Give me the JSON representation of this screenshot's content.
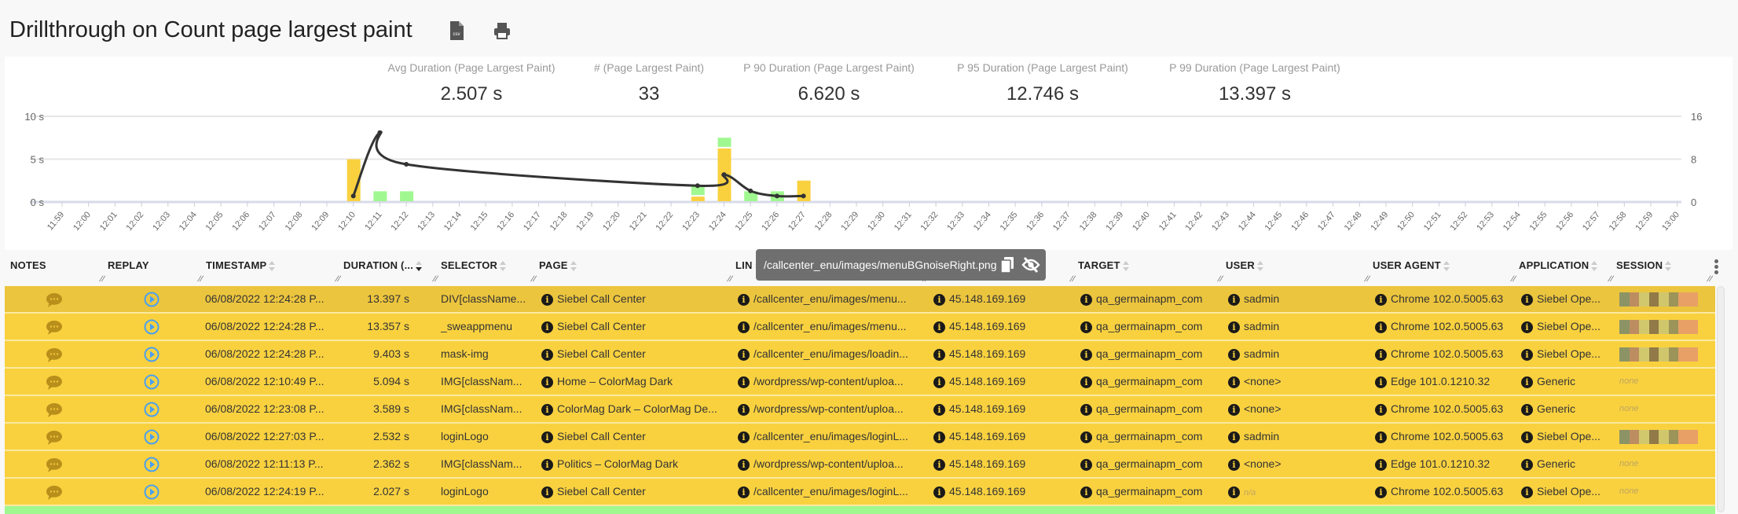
{
  "title": "Drillthrough on Count page largest paint",
  "toolbar": {
    "csv_icon": "csv-file-icon",
    "print_icon": "printer-icon"
  },
  "kpis": [
    {
      "label": "Avg Duration (Page Largest Paint)",
      "value": "2.507 s"
    },
    {
      "label": "# (Page Largest Paint)",
      "value": "33"
    },
    {
      "label": "P 90 Duration (Page Largest Paint)",
      "value": "6.620 s"
    },
    {
      "label": "P 95 Duration (Page Largest Paint)",
      "value": "12.746 s"
    },
    {
      "label": "P 99 Duration (Page Largest Paint)",
      "value": "13.397 s"
    }
  ],
  "chart_data": {
    "type": "bar+line",
    "x": [
      "11:59",
      "12:00",
      "12:01",
      "12:02",
      "12:03",
      "12:04",
      "12:05",
      "12:06",
      "12:07",
      "12:08",
      "12:09",
      "12:10",
      "12:11",
      "12:12",
      "12:13",
      "12:14",
      "12:15",
      "12:16",
      "12:17",
      "12:18",
      "12:19",
      "12:20",
      "12:21",
      "12:22",
      "12:23",
      "12:24",
      "12:25",
      "12:26",
      "12:27",
      "12:28",
      "12:29",
      "12:30",
      "12:31",
      "12:32",
      "12:33",
      "12:34",
      "12:35",
      "12:36",
      "12:37",
      "12:38",
      "12:39",
      "12:40",
      "12:41",
      "12:42",
      "12:43",
      "12:44",
      "12:45",
      "12:46",
      "12:47",
      "12:48",
      "12:49",
      "12:50",
      "12:51",
      "12:52",
      "12:53",
      "12:54",
      "12:55",
      "12:56",
      "12:57",
      "12:58",
      "12:59",
      "13:00"
    ],
    "left_axis": {
      "ticks": [
        "0 s",
        "5 s",
        "10 s"
      ],
      "range": [
        0,
        10
      ],
      "unit": "s"
    },
    "right_axis": {
      "ticks": [
        "0",
        "8",
        "16"
      ],
      "range": [
        0,
        16
      ]
    },
    "grid": true,
    "bars": [
      {
        "x": "12:10",
        "yellow": 8,
        "green": 0
      },
      {
        "x": "12:11",
        "yellow": 0,
        "green": 2
      },
      {
        "x": "12:12",
        "yellow": 0,
        "green": 2
      },
      {
        "x": "12:23",
        "yellow": 1,
        "green": 2
      },
      {
        "x": "12:24",
        "yellow": 10,
        "green": 2
      },
      {
        "x": "12:25",
        "yellow": 0,
        "green": 2
      },
      {
        "x": "12:26",
        "yellow": 0,
        "green": 2
      },
      {
        "x": "12:27",
        "yellow": 4,
        "green": 0
      }
    ],
    "line": [
      {
        "x": "12:10",
        "y": 0.7
      },
      {
        "x": "12:11",
        "y": 8.1
      },
      {
        "x": "12:12",
        "y": 4.4
      },
      {
        "x": "12:23",
        "y": 1.9
      },
      {
        "x": "12:24",
        "y": 3.2
      },
      {
        "x": "12:25",
        "y": 1.3
      },
      {
        "x": "12:26",
        "y": 0.7
      },
      {
        "x": "12:27",
        "y": 0.7
      }
    ],
    "colors": {
      "yellow": "#f9d13f",
      "green": "#a0f890",
      "line": "#333333"
    }
  },
  "table": {
    "columns": [
      "NOTES",
      "REPLAY",
      "TIMESTAMP",
      "DURATION (...",
      "SELECTOR",
      "PAGE",
      "LIN",
      "",
      "TARGET",
      "USER",
      "USER AGENT",
      "APPLICATION",
      "SESSION"
    ],
    "rows": [
      {
        "timestamp": "06/08/2022 12:24:28 P...",
        "duration": "13.397 s",
        "selector": "DIV[className...",
        "page": "Siebel Call Center",
        "link": "/callcenter_enu/images/menu...",
        "ip": "45.148.169.169",
        "target": "qa_germainapm_com",
        "user": "sadmin",
        "ua": "Chrome 102.0.5005.63",
        "app": "Siebel Ope...",
        "session": true
      },
      {
        "timestamp": "06/08/2022 12:24:28 P...",
        "duration": "13.357 s",
        "selector": "_sweappmenu",
        "page": "Siebel Call Center",
        "link": "/callcenter_enu/images/menu...",
        "ip": "45.148.169.169",
        "target": "qa_germainapm_com",
        "user": "sadmin",
        "ua": "Chrome 102.0.5005.63",
        "app": "Siebel Ope...",
        "session": true
      },
      {
        "timestamp": "06/08/2022 12:24:28 P...",
        "duration": "9.403 s",
        "selector": "mask-img",
        "page": "Siebel Call Center",
        "link": "/callcenter_enu/images/loadin...",
        "ip": "45.148.169.169",
        "target": "qa_germainapm_com",
        "user": "sadmin",
        "ua": "Chrome 102.0.5005.63",
        "app": "Siebel Ope...",
        "session": true
      },
      {
        "timestamp": "06/08/2022 12:10:49 P...",
        "duration": "5.094 s",
        "selector": "IMG[classNam...",
        "page": "Home – ColorMag Dark",
        "link": "/wordpress/wp-content/uploa...",
        "ip": "45.148.169.169",
        "target": "qa_germainapm_com",
        "user": "<none>",
        "ua": "Edge 101.0.1210.32",
        "app": "Generic",
        "session": false
      },
      {
        "timestamp": "06/08/2022 12:23:08 P...",
        "duration": "3.589 s",
        "selector": "IMG[classNam...",
        "page": "ColorMag Dark – ColorMag De...",
        "link": "/wordpress/wp-content/uploa...",
        "ip": "45.148.169.169",
        "target": "qa_germainapm_com",
        "user": "<none>",
        "ua": "Chrome 102.0.5005.63",
        "app": "Generic",
        "session": false
      },
      {
        "timestamp": "06/08/2022 12:27:03 P...",
        "duration": "2.532 s",
        "selector": "loginLogo",
        "page": "Siebel Call Center",
        "link": "/callcenter_enu/images/loginL...",
        "ip": "45.148.169.169",
        "target": "qa_germainapm_com",
        "user": "sadmin",
        "ua": "Chrome 102.0.5005.63",
        "app": "Siebel Ope...",
        "session": true
      },
      {
        "timestamp": "06/08/2022 12:11:13 P...",
        "duration": "2.362 s",
        "selector": "IMG[classNam...",
        "page": "Politics – ColorMag Dark",
        "link": "/wordpress/wp-content/uploa...",
        "ip": "45.148.169.169",
        "target": "qa_germainapm_com",
        "user": "<none>",
        "ua": "Edge 101.0.1210.32",
        "app": "Generic",
        "session": false
      },
      {
        "timestamp": "06/08/2022 12:24:19 P...",
        "duration": "2.027 s",
        "selector": "loginLogo",
        "page": "Siebel Call Center",
        "link": "/callcenter_enu/images/loginL...",
        "ip": "45.148.169.169",
        "target": "qa_germainapm_com",
        "user": "n/a",
        "user_na": true,
        "ua": "Chrome 102.0.5005.63",
        "app": "Siebel Ope...",
        "session": false
      }
    ],
    "none_label": "none",
    "session_colors": [
      "#8c9466",
      "#bd8d62",
      "#d1c86e",
      "#917a48",
      "#d0c66c",
      "#9c9458",
      "#e8a066"
    ],
    "row_colors": {
      "default": "#f9d13f",
      "hover": "#ecc53e",
      "next": "#a0f890"
    }
  },
  "tooltip": {
    "text": "/callcenter_enu/images/menuBGnoiseRight.png",
    "copy_icon": "copy-icon",
    "hide_icon": "eye-slash-icon"
  }
}
